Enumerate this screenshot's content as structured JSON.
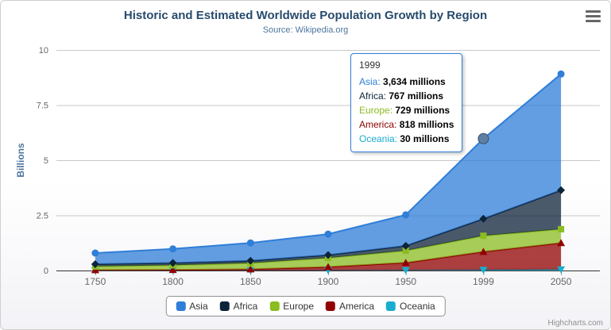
{
  "header": {
    "title": "Historic and Estimated Worldwide Population Growth by Region",
    "subtitle": "Source: Wikipedia.org"
  },
  "credits": "Highcharts.com",
  "tooltip": {
    "header": "1999",
    "rows": [
      {
        "name": "Asia",
        "value": "3,634 millions"
      },
      {
        "name": "Africa",
        "value": "767 millions"
      },
      {
        "name": "Europe",
        "value": "729 millions"
      },
      {
        "name": "America",
        "value": "818 millions"
      },
      {
        "name": "Oceania",
        "value": "30 millions"
      }
    ]
  },
  "chart_data": {
    "type": "area",
    "stacking": "normal",
    "title": "Historic and Estimated Worldwide Population Growth by Region",
    "subtitle": "Source: Wikipedia.org",
    "categories": [
      "1750",
      "1800",
      "1850",
      "1900",
      "1950",
      "1999",
      "2050"
    ],
    "xlabel": "",
    "ylabel": "Billions",
    "ylim": [
      0,
      10
    ],
    "yticks": [
      0,
      2.5,
      5,
      7.5,
      10
    ],
    "values_unit": "millions",
    "series": [
      {
        "name": "Asia",
        "color": "#2f7ed8",
        "marker": "circle",
        "values": [
          502,
          635,
          809,
          947,
          1402,
          3634,
          5268
        ]
      },
      {
        "name": "Africa",
        "color": "#0d233a",
        "marker": "diamond",
        "values": [
          106,
          107,
          111,
          133,
          221,
          767,
          1766
        ]
      },
      {
        "name": "Europe",
        "color": "#8bbc21",
        "marker": "square",
        "values": [
          163,
          203,
          276,
          408,
          547,
          729,
          628
        ]
      },
      {
        "name": "America",
        "color": "#910000",
        "marker": "triangle",
        "values": [
          18,
          31,
          54,
          156,
          339,
          818,
          1201
        ]
      },
      {
        "name": "Oceania",
        "color": "#1aadce",
        "marker": "triangle-down",
        "values": [
          2,
          2,
          2,
          6,
          13,
          30,
          46
        ]
      }
    ],
    "stack_order_bottom_to_top": [
      "Oceania",
      "America",
      "Europe",
      "Africa",
      "Asia"
    ],
    "hover": {
      "category": "1999",
      "series": "Asia",
      "marker_color": "#5d7fa3"
    },
    "legend_position": "bottom",
    "grid": true
  }
}
